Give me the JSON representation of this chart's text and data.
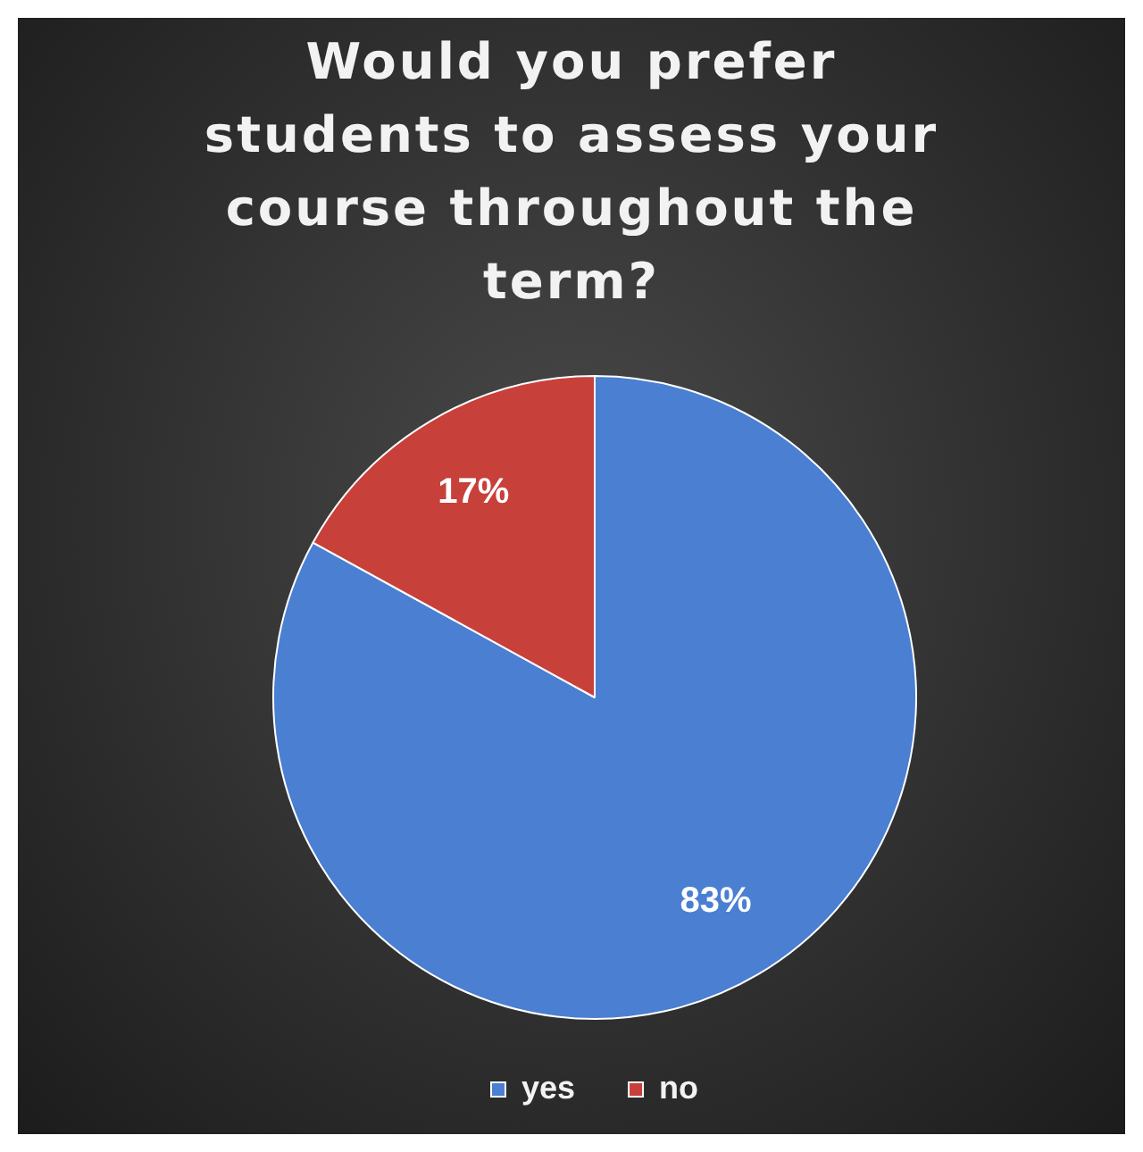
{
  "chart_data": {
    "type": "pie",
    "title": "Would you prefer students to assess your course throughout the term?",
    "categories": [
      "yes",
      "no"
    ],
    "values": [
      83,
      17
    ],
    "colors": [
      "#4a7fd2",
      "#c8403a"
    ],
    "value_labels": [
      "83%",
      "17%"
    ],
    "legend": "bottom"
  }
}
